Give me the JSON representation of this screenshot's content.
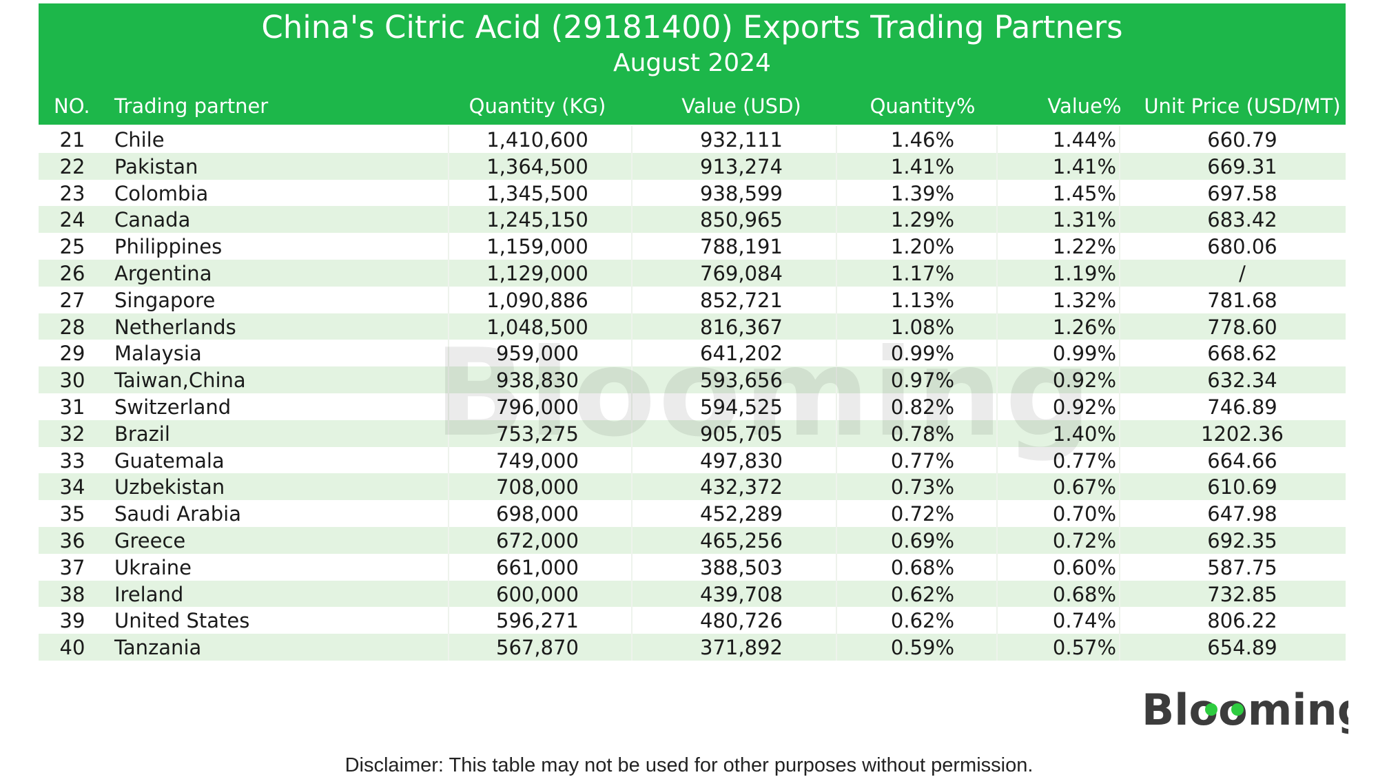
{
  "chart_data": {
    "type": "table",
    "title": "China's Citric Acid (29181400) Exports Trading Partners",
    "subtitle": "August 2024",
    "columns": [
      "NO.",
      "Trading partner",
      "Quantity (KG)",
      "Value (USD)",
      "Quantity%",
      "Value%",
      "Unit Price (USD/MT)"
    ],
    "rows": [
      [
        "21",
        "Chile",
        "1,410,600",
        "932,111",
        "1.46%",
        "1.44%",
        "660.79"
      ],
      [
        "22",
        "Pakistan",
        "1,364,500",
        "913,274",
        "1.41%",
        "1.41%",
        "669.31"
      ],
      [
        "23",
        "Colombia",
        "1,345,500",
        "938,599",
        "1.39%",
        "1.45%",
        "697.58"
      ],
      [
        "24",
        "Canada",
        "1,245,150",
        "850,965",
        "1.29%",
        "1.31%",
        "683.42"
      ],
      [
        "25",
        "Philippines",
        "1,159,000",
        "788,191",
        "1.20%",
        "1.22%",
        "680.06"
      ],
      [
        "26",
        "Argentina",
        "1,129,000",
        "769,084",
        "1.17%",
        "1.19%",
        "/"
      ],
      [
        "27",
        "Singapore",
        "1,090,886",
        "852,721",
        "1.13%",
        "1.32%",
        "781.68"
      ],
      [
        "28",
        "Netherlands",
        "1,048,500",
        "816,367",
        "1.08%",
        "1.26%",
        "778.60"
      ],
      [
        "29",
        "Malaysia",
        "959,000",
        "641,202",
        "0.99%",
        "0.99%",
        "668.62"
      ],
      [
        "30",
        "Taiwan,China",
        "938,830",
        "593,656",
        "0.97%",
        "0.92%",
        "632.34"
      ],
      [
        "31",
        "Switzerland",
        "796,000",
        "594,525",
        "0.82%",
        "0.92%",
        "746.89"
      ],
      [
        "32",
        "Brazil",
        "753,275",
        "905,705",
        "0.78%",
        "1.40%",
        "1202.36"
      ],
      [
        "33",
        "Guatemala",
        "749,000",
        "497,830",
        "0.77%",
        "0.77%",
        "664.66"
      ],
      [
        "34",
        "Uzbekistan",
        "708,000",
        "432,372",
        "0.73%",
        "0.67%",
        "610.69"
      ],
      [
        "35",
        "Saudi Arabia",
        "698,000",
        "452,289",
        "0.72%",
        "0.70%",
        "647.98"
      ],
      [
        "36",
        "Greece",
        "672,000",
        "465,256",
        "0.69%",
        "0.72%",
        "692.35"
      ],
      [
        "37",
        "Ukraine",
        "661,000",
        "388,503",
        "0.68%",
        "0.60%",
        "587.75"
      ],
      [
        "38",
        "Ireland",
        "600,000",
        "439,708",
        "0.62%",
        "0.68%",
        "732.85"
      ],
      [
        "39",
        "United States",
        "596,271",
        "480,726",
        "0.62%",
        "0.74%",
        "806.22"
      ],
      [
        "40",
        "Tanzania",
        "567,870",
        "371,892",
        "0.59%",
        "0.57%",
        "654.89"
      ]
    ]
  },
  "branding": {
    "watermark": "Blooming",
    "logo": "Blooming"
  },
  "footer": {
    "disclaimer": "Disclaimer: This table may not be used for other purposes without permission."
  },
  "colors": {
    "header_bg": "#1db74a",
    "row_alt_bg": "#e3f3e1",
    "logo_dot": "#2ecc40"
  }
}
